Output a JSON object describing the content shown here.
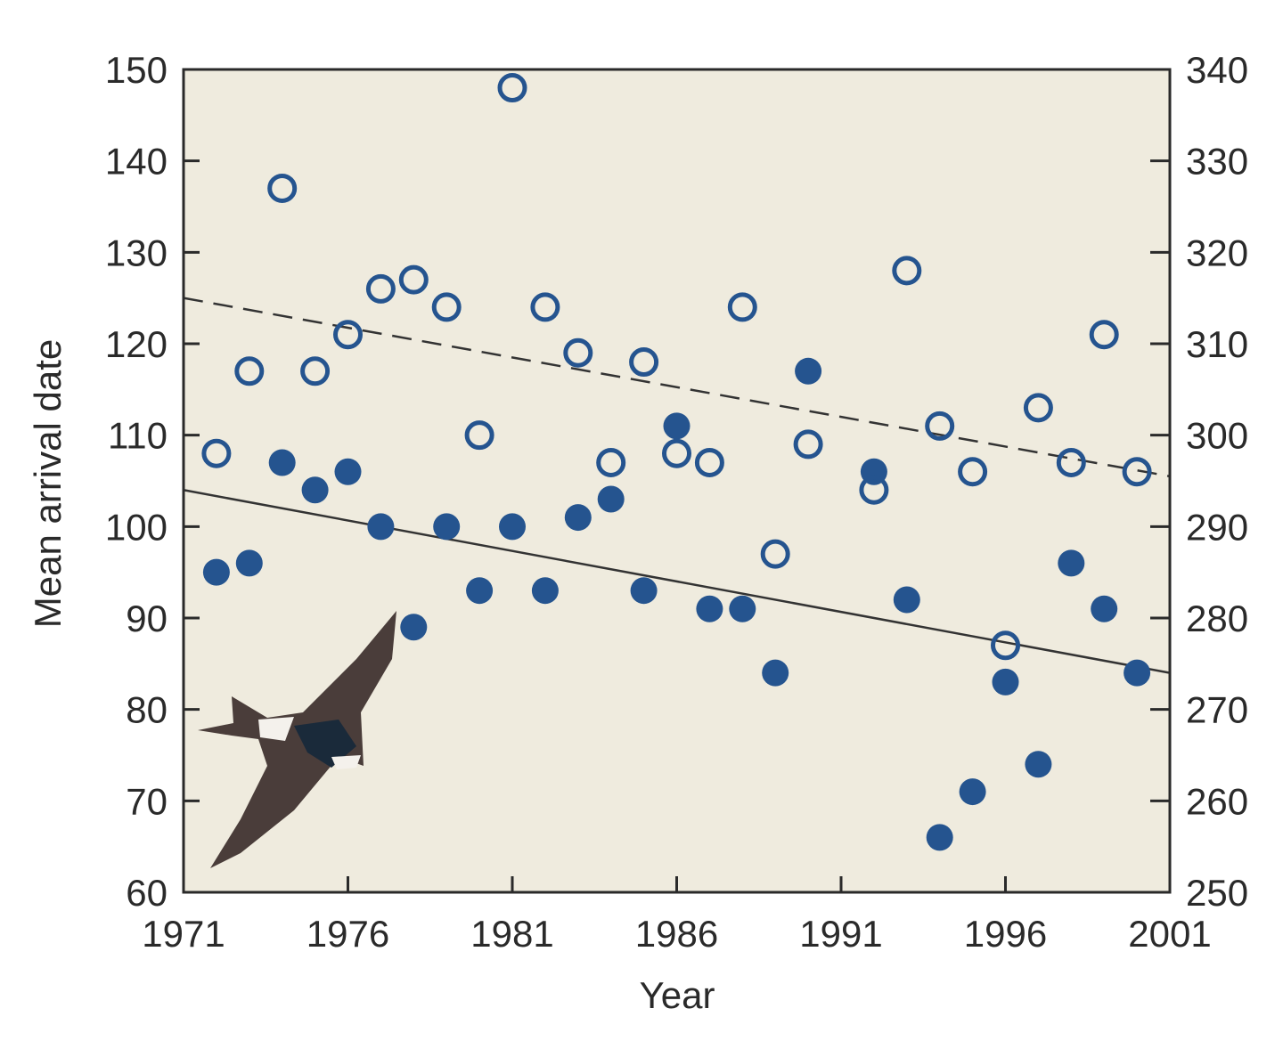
{
  "chart_data": {
    "type": "scatter",
    "title": "",
    "xlabel": "Year",
    "ylabel": "Mean arrival date",
    "y2label": "",
    "xlim": [
      1971,
      2001
    ],
    "ylim": [
      60,
      150
    ],
    "y2lim": [
      250,
      340
    ],
    "xticks": [
      "1971",
      "1976",
      "1981",
      "1986",
      "1991",
      "1996",
      "2001"
    ],
    "yticks": [
      "60",
      "70",
      "80",
      "90",
      "100",
      "110",
      "120",
      "130",
      "140",
      "150"
    ],
    "y2ticks": [
      "250",
      "260",
      "270",
      "280",
      "290",
      "300",
      "310",
      "320",
      "330",
      "340"
    ],
    "grid": false,
    "legend": "none",
    "colors": {
      "points": "#25548f",
      "background": "#efebde",
      "trend": "#333333"
    },
    "series": [
      {
        "marker": "filled-circle",
        "axis": "left",
        "x": [
          1972,
          1973,
          1974,
          1975,
          1976,
          1977,
          1978,
          1979,
          1980,
          1981,
          1982,
          1983,
          1984,
          1985,
          1986,
          1987,
          1988,
          1989,
          1990,
          1992,
          1993,
          1994,
          1995,
          1996,
          1997,
          1998,
          1999,
          2000
        ],
        "y": [
          95,
          96,
          107,
          104,
          106,
          100,
          89,
          100,
          93,
          100,
          93,
          101,
          103,
          93,
          111,
          91,
          91,
          84,
          117,
          106,
          92,
          66,
          71,
          83,
          74,
          96,
          91,
          84
        ],
        "trend": {
          "style": "solid",
          "x": [
            1971,
            2001
          ],
          "y": [
            104,
            84
          ]
        }
      },
      {
        "marker": "open-circle",
        "axis": "right",
        "x": [
          1972,
          1973,
          1974,
          1975,
          1976,
          1977,
          1978,
          1979,
          1980,
          1981,
          1982,
          1983,
          1984,
          1985,
          1986,
          1987,
          1988,
          1989,
          1990,
          1992,
          1993,
          1994,
          1995,
          1996,
          1997,
          1998,
          1999,
          2000
        ],
        "y": [
          298,
          307,
          327,
          307,
          311,
          316,
          317,
          314,
          300,
          338,
          314,
          309,
          297,
          308,
          298,
          297,
          314,
          287,
          299,
          294,
          318,
          301,
          296,
          277,
          303,
          297,
          311,
          296
        ],
        "trend": {
          "style": "dashed",
          "x": [
            1971,
            2001
          ],
          "y": [
            315,
            295.5
          ]
        }
      }
    ],
    "illustration": "swallow-in-flight"
  }
}
